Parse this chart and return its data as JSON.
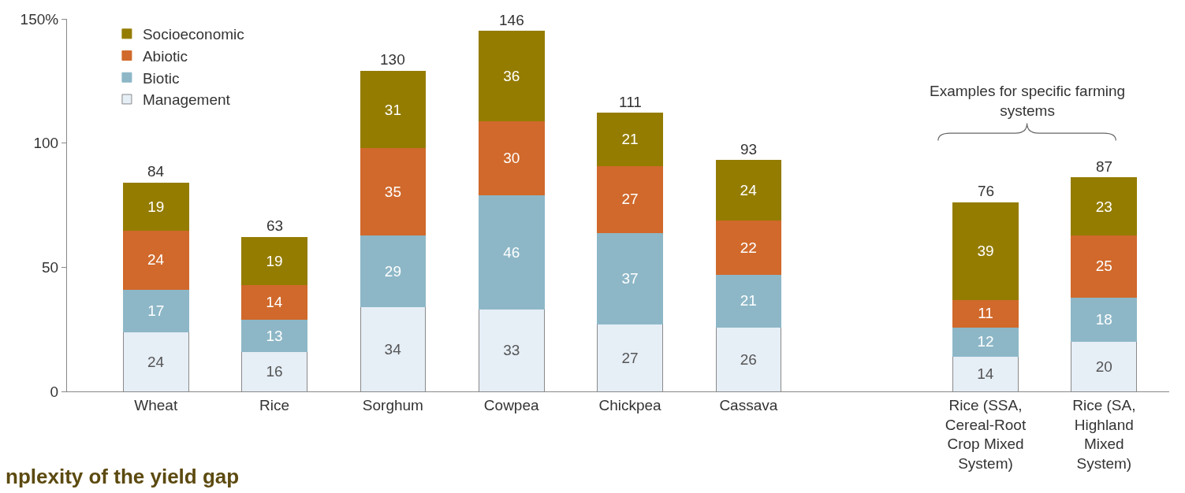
{
  "chart_data": {
    "type": "bar",
    "stacked": true,
    "categories": [
      "Wheat",
      "Rice",
      "Sorghum",
      "Cowpea",
      "Chickpea",
      "Cassava",
      null,
      "Rice (SSA,\nCereal-Root\nCrop Mixed\nSystem)",
      "Rice (SA,\nHighland\nMixed\nSystem)"
    ],
    "series": [
      {
        "name": "Management",
        "color": "#e6eef6",
        "values": [
          24,
          16,
          34,
          33,
          27,
          26,
          null,
          14,
          20
        ]
      },
      {
        "name": "Biotic",
        "color": "#8db7c7",
        "values": [
          17,
          13,
          29,
          46,
          37,
          21,
          null,
          12,
          18
        ]
      },
      {
        "name": "Abiotic",
        "color": "#d0692b",
        "values": [
          24,
          14,
          35,
          30,
          27,
          22,
          null,
          11,
          25
        ]
      },
      {
        "name": "Socioeconomic",
        "color": "#947c00",
        "values": [
          19,
          19,
          31,
          36,
          21,
          24,
          null,
          39,
          23
        ]
      }
    ],
    "totals": [
      "84",
      "63",
      "130",
      "146",
      "111",
      "93",
      null,
      "76",
      "87"
    ],
    "data_labels": true,
    "ylim": [
      0,
      150
    ],
    "yticks": [
      0,
      50,
      100,
      {
        "value": 150,
        "label": "150%"
      }
    ],
    "legend": "top left",
    "annotations": [
      "Examples for specific farming systems",
      "nplexity of the yield gap"
    ]
  }
}
